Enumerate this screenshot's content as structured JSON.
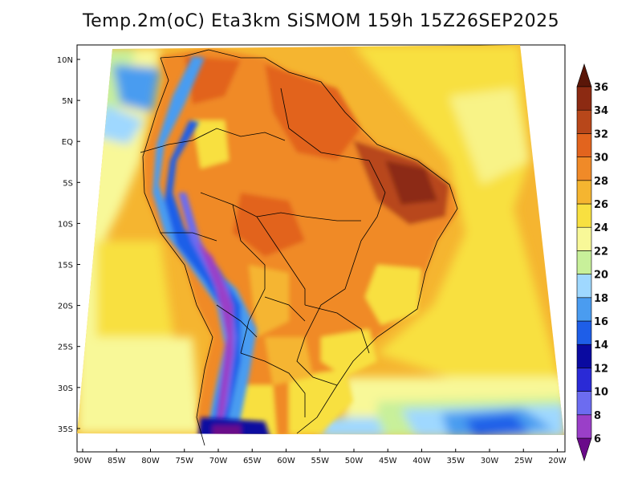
{
  "title": "Temp.2m(oC) Eta3km SiSMOM 159h 15Z26SEP2025",
  "lat_labels": [
    "10N",
    "5N",
    "EQ",
    "5S",
    "10S",
    "15S",
    "20S",
    "25S",
    "30S",
    "35S"
  ],
  "lon_labels": [
    "90W",
    "85W",
    "80W",
    "75W",
    "70W",
    "65W",
    "60W",
    "55W",
    "50W",
    "45W",
    "40W",
    "35W",
    "30W",
    "25W",
    "20W"
  ],
  "colorbar": {
    "labels": [
      "6",
      "8",
      "10",
      "12",
      "14",
      "16",
      "18",
      "20",
      "22",
      "24",
      "26",
      "28",
      "30",
      "32",
      "34",
      "36"
    ],
    "colors": [
      "#6a0a8a",
      "#9a3fc8",
      "#6c6cf0",
      "#2a2ad6",
      "#0a0aa0",
      "#1e5ee8",
      "#4a9cf0",
      "#9fd8ff",
      "#c8f09a",
      "#f8f898",
      "#f8e040",
      "#f5b530",
      "#f08a28",
      "#e2641e",
      "#b8471a",
      "#8c2a12",
      "#5a1608"
    ]
  }
}
